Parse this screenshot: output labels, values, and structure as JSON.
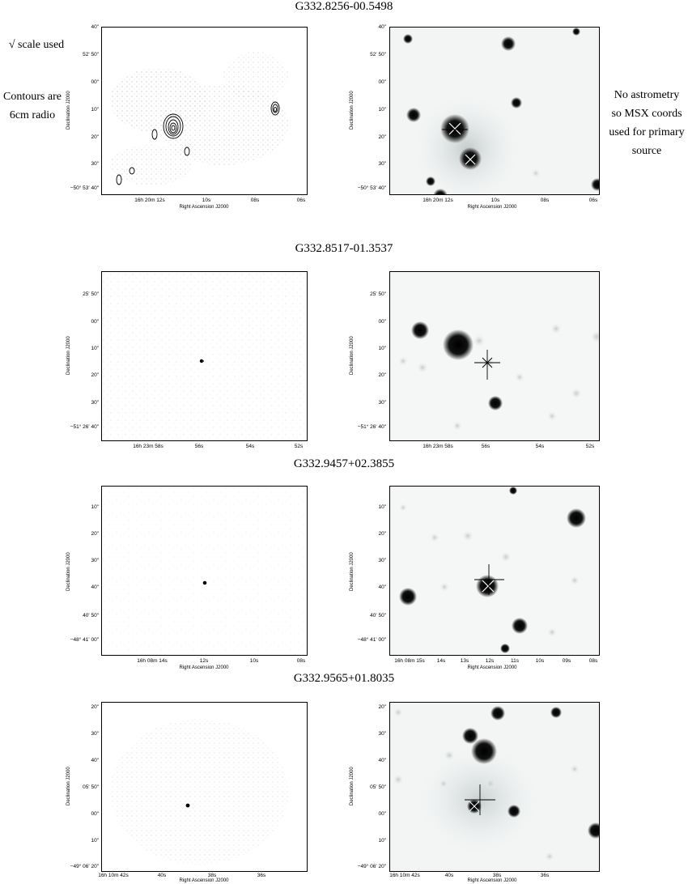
{
  "side_notes": {
    "scale": "√ scale used",
    "contours_line1": "Contours are",
    "contours_line2": "6cm radio",
    "astrometry_line1": "No astrometry",
    "astrometry_line2": "so MSX coords",
    "astrometry_line3": "used for primary",
    "astrometry_line4": "source"
  },
  "common": {
    "ylabel": "Declination J2000",
    "xlabel": "Right Ascension J2000"
  },
  "rows": [
    {
      "title": "G332.8256-00.5498",
      "yticks": [
        "40\"",
        "52' 50\"",
        "00\"",
        "10\"",
        "20\"",
        "30\"",
        "−50° 53' 40\""
      ],
      "xticks": [
        "16h 20m 12s",
        "10s",
        "08s",
        "06s"
      ]
    },
    {
      "title": "G332.8517-01.3537",
      "yticks": [
        "25' 50\"",
        "00\"",
        "10\"",
        "20\"",
        "30\"",
        "−51° 26' 40\""
      ],
      "xticks": [
        "16h 23m 58s",
        "56s",
        "54s",
        "52s"
      ]
    },
    {
      "title": "G332.9457+02.3855",
      "yticks": [
        "10\"",
        "20\"",
        "30\"",
        "40\"",
        "40' 50\"",
        "−48° 41' 00\""
      ],
      "xticks": [
        "16h 08m 14s",
        "12s",
        "10s",
        "08s"
      ],
      "xticks_right": [
        "16h 08m 15s",
        "14s",
        "13s",
        "12s",
        "11s",
        "10s",
        "09s",
        "08s"
      ]
    },
    {
      "title": "G332.9565+01.8035",
      "yticks": [
        "20\"",
        "30\"",
        "40\"",
        "05' 50\"",
        "00\"",
        "10\"",
        "−49° 06' 20\""
      ],
      "xticks": [
        "16h 10m 42s",
        "40s",
        "38s",
        "36s"
      ]
    }
  ]
}
